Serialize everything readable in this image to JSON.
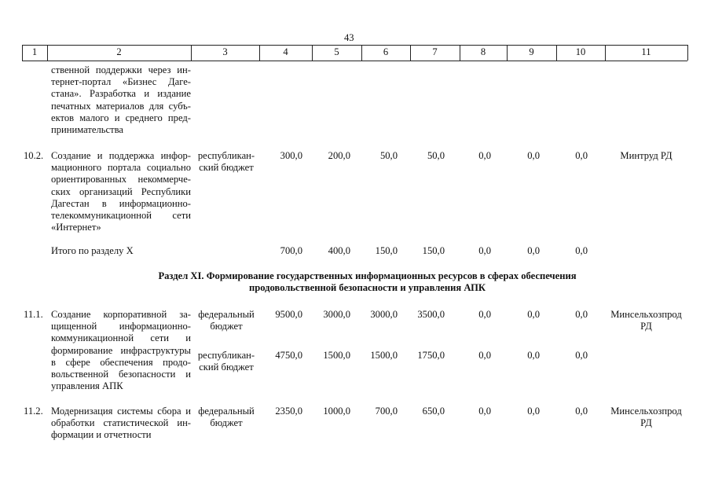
{
  "page_number": "43",
  "header": [
    "1",
    "2",
    "3",
    "4",
    "5",
    "6",
    "7",
    "8",
    "9",
    "10",
    "11"
  ],
  "rows": [
    {
      "no": "",
      "desc": [
        "ственной поддержки через ин-",
        "тернет-портал «Бизнес Даге-",
        "стана». Разработка и издание",
        "печатных материалов для субъ-",
        "ектов малого и среднего пред-",
        "принимательства"
      ],
      "lines": []
    },
    {
      "no": "10.2.",
      "desc": [
        "Создание и поддержка инфор-",
        "мационного портала социально",
        "ориентированных некоммерче-",
        "ских организаций Республики",
        "Дагестан в информационно-",
        "телекоммуникационной сети",
        "«Интернет»"
      ],
      "lines": [
        {
          "source": "республикан- ский бюджет",
          "values": [
            "300,0",
            "200,0",
            "50,0",
            "50,0",
            "0,0",
            "0,0",
            "0,0"
          ]
        }
      ],
      "responsible": "Минтруд РД"
    },
    {
      "no": "",
      "total": "Итого по разделу X",
      "values": [
        "700,0",
        "400,0",
        "150,0",
        "150,0",
        "0,0",
        "0,0",
        "0,0"
      ]
    }
  ],
  "section": {
    "line1": "Раздел XI. Формирование государственных информационных ресурсов в сферах обеспечения",
    "line2": "продовольственной безопасности и управления АПК"
  },
  "rows2": [
    {
      "no": "11.1.",
      "desc": [
        "Создание корпоративной за-",
        "щищенной информационно-",
        "коммуникационной сети и",
        "формирование инфраструктуры",
        "в сфере обеспечения продо-",
        "вольственной безопасности и",
        "управления АПК"
      ],
      "lines": [
        {
          "source": "федеральный бюджет",
          "values": [
            "9500,0",
            "3000,0",
            "3000,0",
            "3500,0",
            "0,0",
            "0,0",
            "0,0"
          ]
        },
        {
          "source": "республикан- ский бюджет",
          "values": [
            "4750,0",
            "1500,0",
            "1500,0",
            "1750,0",
            "0,0",
            "0,0",
            "0,0"
          ]
        }
      ],
      "responsible": "Минсельхозпрод РД"
    },
    {
      "no": "11.2.",
      "desc": [
        "Модернизация системы сбора и",
        "обработки статистической ин-",
        "формации и отчетности"
      ],
      "lines": [
        {
          "source": "федеральный бюджет",
          "values": [
            "2350,0",
            "1000,0",
            "700,0",
            "650,0",
            "0,0",
            "0,0",
            "0,0"
          ]
        }
      ],
      "responsible": "Минсельхозпрод РД"
    }
  ]
}
